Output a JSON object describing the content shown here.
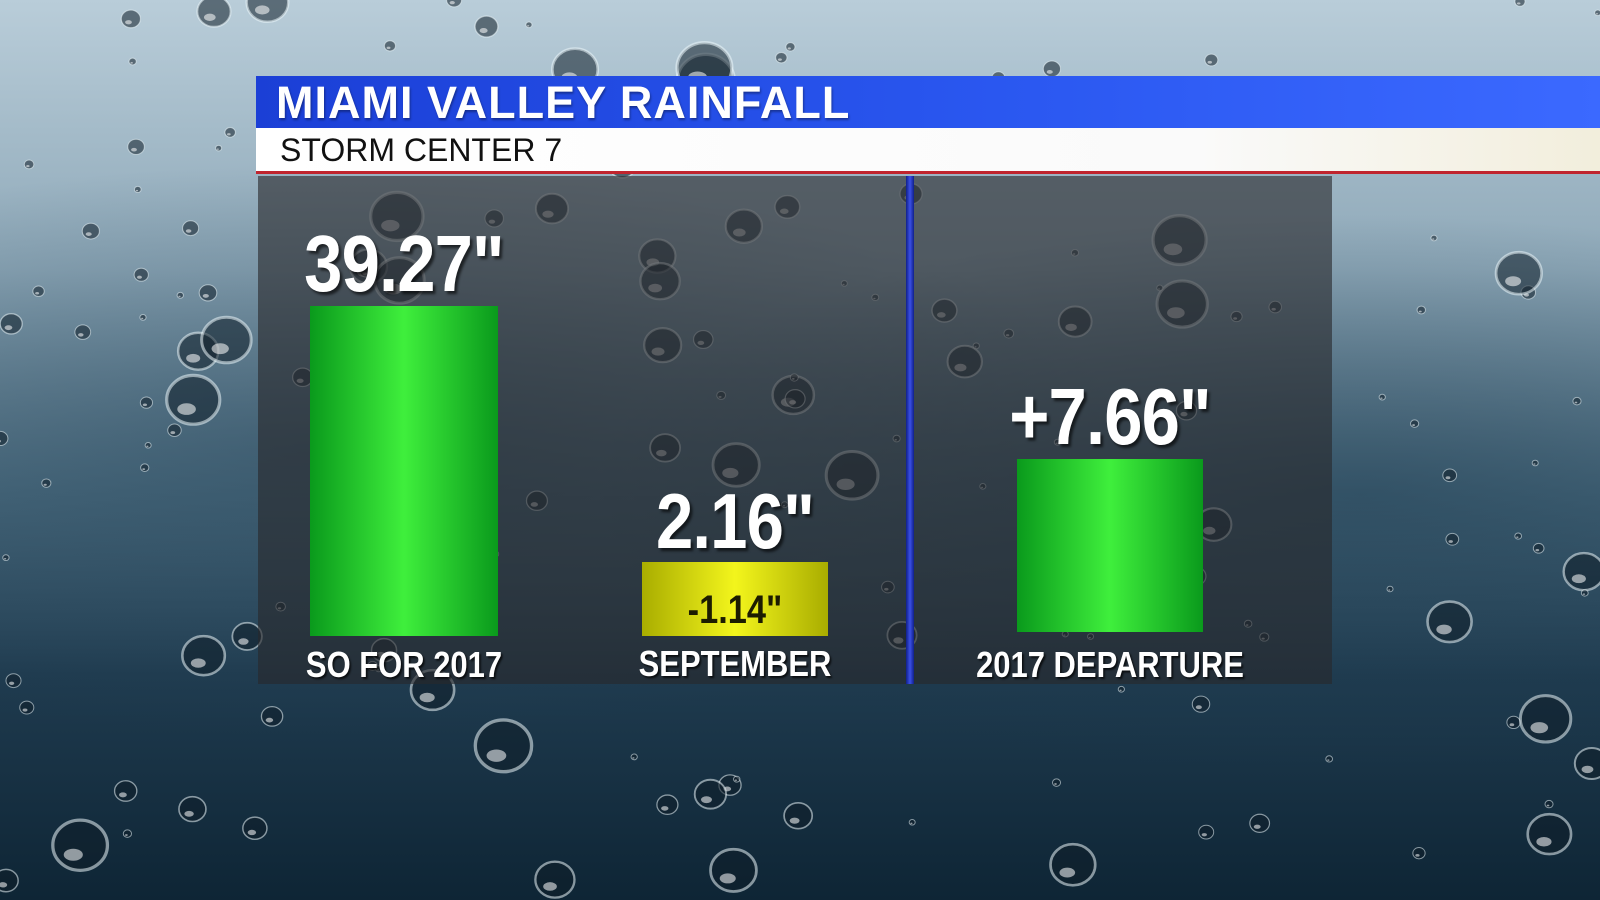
{
  "header": {
    "title": "MIAMI VALLEY RAINFALL",
    "subtitle": "STORM CENTER 7"
  },
  "colors": {
    "title_blue": "#2a57f0",
    "bar_green": "#3fef3c",
    "bar_yellow": "#f3f51c",
    "divider_blue": "#3b50e6",
    "accent_red": "#c0252e"
  },
  "chart_data": {
    "type": "bar",
    "categories": [
      "SO FOR 2017",
      "SEPTEMBER",
      "2017 DEPARTURE"
    ],
    "values": [
      39.27,
      2.16,
      7.66
    ],
    "value_labels": [
      "39.27\"",
      "2.16\"",
      "+7.66\""
    ],
    "units": "inches",
    "annotations": [
      {
        "category": "SEPTEMBER",
        "text": "-1.14\"",
        "value": -1.14
      }
    ],
    "bar_colors": [
      "#3fef3c",
      "#f3f51c",
      "#3fef3c"
    ]
  }
}
